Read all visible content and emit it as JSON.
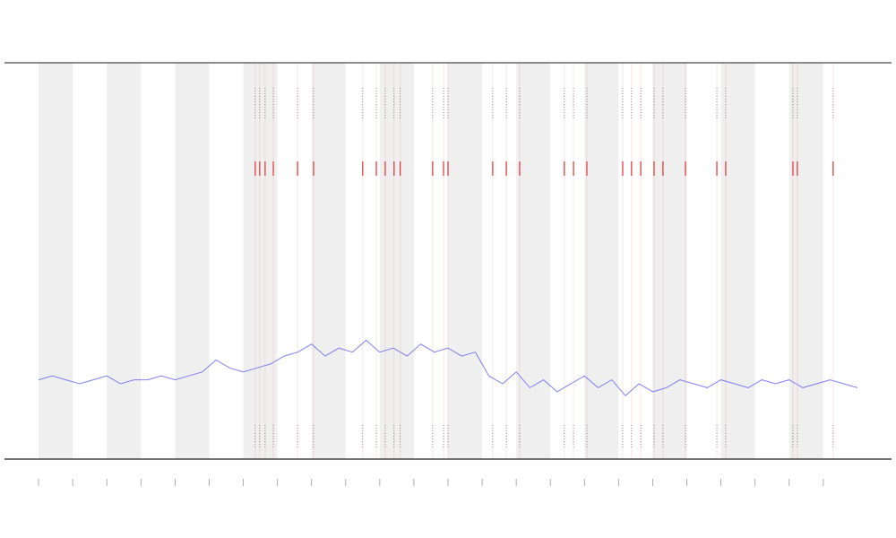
{
  "chart_data": {
    "type": "line",
    "x": [
      0,
      0.4,
      0.8,
      1.2,
      1.6,
      2,
      2.4,
      2.8,
      3.2,
      3.6,
      4,
      4.4,
      4.8,
      5.2,
      5.6,
      6,
      6.4,
      6.8,
      7.2,
      7.6,
      8,
      8.4,
      8.8,
      9.2,
      9.6,
      10,
      10.4,
      10.8,
      11.2,
      11.6,
      12,
      12.4,
      12.8,
      13.2,
      13.6,
      14,
      14.4,
      14.8,
      15.2,
      15.6,
      16,
      16.4,
      16.8,
      17.2,
      17.6,
      18,
      18.4,
      18.8,
      19.2,
      19.6,
      20,
      20.4,
      20.8,
      21.2,
      21.6,
      22,
      22.4,
      22.8,
      23.2,
      23.6,
      24
    ],
    "series": [
      {
        "color": "#6b6bf0",
        "values": [
          20,
          21,
          20,
          19,
          20,
          21,
          19,
          20,
          20,
          21,
          20,
          21,
          22,
          25,
          23,
          22,
          23,
          24,
          26,
          27,
          29,
          26,
          28,
          27,
          30,
          27,
          28,
          26,
          29,
          27,
          28,
          26,
          27,
          21,
          19,
          22,
          18,
          20,
          17,
          19,
          21,
          18,
          20,
          16,
          19,
          17,
          18,
          20,
          19,
          18,
          20,
          19,
          18,
          20,
          19,
          20,
          18,
          19,
          20,
          19,
          18
        ]
      }
    ],
    "events": [
      6.35,
      6.48,
      6.64,
      6.88,
      7.59,
      8.06,
      9.5,
      9.9,
      10.16,
      10.42,
      10.6,
      11.55,
      11.87,
      12.0,
      13.31,
      13.71,
      14.1,
      15.41,
      15.68,
      16.07,
      17.12,
      17.38,
      17.65,
      18.04,
      18.3,
      18.96,
      19.88,
      20.14,
      22.11,
      22.24,
      23.29
    ],
    "event_color": "#e03030",
    "xlim": [
      -1,
      25
    ],
    "ylim": [
      0,
      100
    ],
    "xticks": [
      0,
      1,
      2,
      3,
      4,
      5,
      6,
      7,
      8,
      9,
      10,
      11,
      12,
      13,
      14,
      15,
      16,
      17,
      18,
      19,
      20,
      21,
      22,
      23
    ],
    "grid": false
  }
}
